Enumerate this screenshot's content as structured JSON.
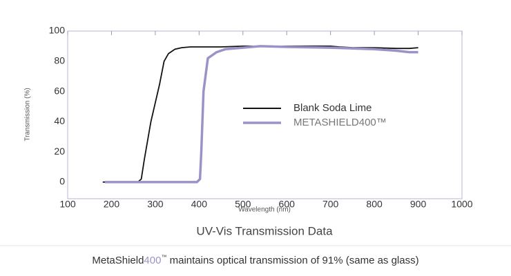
{
  "chart_data": {
    "type": "line",
    "title": "UV-Vis Transmission Data",
    "x_label": "Wavelength (nm)",
    "y_label": "Transmission (%)",
    "xlim": [
      100,
      1000
    ],
    "xticks": [
      100,
      200,
      300,
      400,
      500,
      600,
      700,
      800,
      900,
      1000
    ],
    "ylim": [
      -11,
      100
    ],
    "yticks": [
      0,
      20,
      40,
      60,
      80,
      100
    ],
    "grid": false,
    "series": [
      {
        "name": "Blank Soda Lime",
        "color": "#111111",
        "x": [
          180,
          260,
          268,
          275,
          290,
          310,
          320,
          330,
          345,
          360,
          380,
          400,
          450,
          500,
          600,
          700,
          720,
          750,
          800,
          850,
          880,
          900
        ],
        "values": [
          0,
          0,
          2,
          15,
          40,
          65,
          80,
          85,
          88,
          89,
          89.5,
          89.5,
          89.5,
          90,
          90,
          90,
          89.5,
          89,
          89,
          88.5,
          88.5,
          89
        ]
      },
      {
        "name": "METASHIELD400™",
        "color": "#9b93c7",
        "x": [
          185,
          300,
          395,
          402,
          405,
          410,
          420,
          440,
          460,
          500,
          540,
          600,
          700,
          750,
          800,
          850,
          880,
          900
        ],
        "values": [
          0,
          0,
          0,
          2,
          20,
          60,
          82,
          86,
          88,
          89,
          90,
          89.5,
          89,
          88.5,
          88,
          87,
          86,
          86
        ]
      }
    ],
    "caption_parts": [
      "MetaShield",
      "400",
      "™",
      " maintains optical transmission of 91% (same as glass)"
    ]
  }
}
